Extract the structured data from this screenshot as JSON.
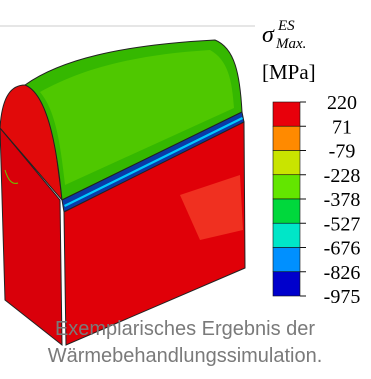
{
  "legend": {
    "symbol": "σ",
    "superscript": "ES",
    "subscript": "Max.",
    "unit": "[MPa]",
    "ticks": [
      "220",
      "71",
      "-79",
      "-228",
      "-378",
      "-527",
      "-676",
      "-826",
      "-975"
    ],
    "colors": [
      "#e8000b",
      "#ff8a00",
      "#c9e400",
      "#63e600",
      "#00d83c",
      "#00e6c8",
      "#0090ff",
      "#0000cc"
    ]
  },
  "caption": {
    "lines": [
      "Exemplarisches Ergebnis der",
      "Wärmebehandlungssimulation."
    ]
  }
}
